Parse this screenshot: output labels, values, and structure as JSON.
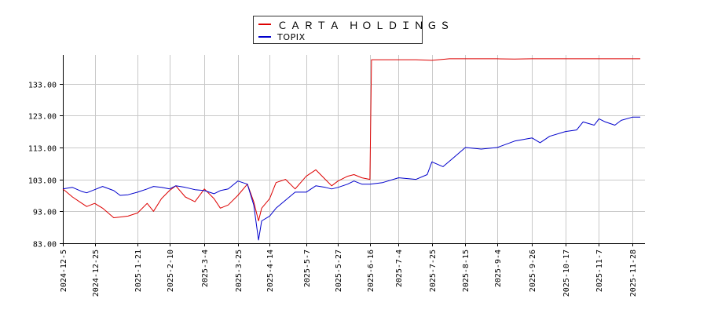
{
  "chart_data": {
    "type": "line",
    "title": "",
    "xlabel": "",
    "ylabel": "",
    "ylim": [
      83,
      142
    ],
    "yticks": [
      "83.00",
      "93.00",
      "103.00",
      "113.00",
      "123.00",
      "133.00"
    ],
    "x_tick_labels": [
      "2024-12-5",
      "2024-12-25",
      "2025-1-21",
      "2025-2-10",
      "2025-3-4",
      "2025-3-25",
      "2025-4-14",
      "2025-5-7",
      "2025-5-27",
      "2025-6-16",
      "2025-7-4",
      "2025-7-25",
      "2025-8-15",
      "2025-9-4",
      "2025-9-26",
      "2025-10-17",
      "2025-11-7",
      "2025-11-28"
    ],
    "grid": true,
    "legend_position": "top-center",
    "series": [
      {
        "name": "ＣＡＲＴＡ ＨＯＬＤＩＮＧＳ",
        "color": "#dd0000",
        "x": [
          "2024-12-5",
          "2024-12-11",
          "2024-12-17",
          "2024-12-20",
          "2024-12-25",
          "2024-12-30",
          "2025-1-6",
          "2025-1-10",
          "2025-1-15",
          "2025-1-21",
          "2025-1-27",
          "2025-1-31",
          "2025-2-5",
          "2025-2-10",
          "2025-2-14",
          "2025-2-20",
          "2025-2-26",
          "2025-3-4",
          "2025-3-10",
          "2025-3-14",
          "2025-3-19",
          "2025-3-25",
          "2025-3-31",
          "2025-4-4",
          "2025-4-7",
          "2025-4-9",
          "2025-4-14",
          "2025-4-18",
          "2025-4-24",
          "2025-4-30",
          "2025-5-7",
          "2025-5-13",
          "2025-5-19",
          "2025-5-23",
          "2025-5-27",
          "2025-6-2",
          "2025-6-6",
          "2025-6-11",
          "2025-6-16",
          "2025-6-17",
          "2025-6-18",
          "2025-6-24",
          "2025-7-4",
          "2025-7-15",
          "2025-7-25",
          "2025-8-5",
          "2025-8-15",
          "2025-8-25",
          "2025-9-4",
          "2025-9-15",
          "2025-9-26",
          "2025-10-7",
          "2025-10-17",
          "2025-10-28",
          "2025-11-7",
          "2025-11-17",
          "2025-11-28",
          "2025-12-3"
        ],
        "values": [
          100.0,
          97.5,
          95.5,
          94.5,
          95.5,
          94.0,
          91.0,
          91.2,
          91.5,
          92.5,
          95.5,
          93.0,
          97.0,
          99.5,
          101.0,
          97.5,
          96.0,
          100.0,
          97.0,
          94.0,
          95.0,
          98.0,
          101.5,
          96.0,
          90.0,
          94.0,
          97.0,
          102.0,
          103.0,
          100.0,
          104.0,
          106.0,
          103.0,
          101.0,
          102.5,
          104.0,
          104.5,
          103.5,
          103.0,
          140.5,
          140.5,
          140.5,
          140.5,
          140.5,
          140.3,
          140.8,
          140.8,
          140.8,
          140.8,
          140.7,
          140.8,
          140.8,
          140.8,
          140.8,
          140.8,
          140.8,
          140.8,
          140.8
        ]
      },
      {
        "name": "TOPIX",
        "color": "#0000cc",
        "x": [
          "2024-12-5",
          "2024-12-11",
          "2024-12-17",
          "2024-12-20",
          "2024-12-25",
          "2024-12-30",
          "2025-1-6",
          "2025-1-10",
          "2025-1-15",
          "2025-1-21",
          "2025-1-27",
          "2025-1-31",
          "2025-2-5",
          "2025-2-10",
          "2025-2-14",
          "2025-2-20",
          "2025-2-26",
          "2025-3-4",
          "2025-3-10",
          "2025-3-14",
          "2025-3-19",
          "2025-3-25",
          "2025-3-31",
          "2025-4-4",
          "2025-4-7",
          "2025-4-9",
          "2025-4-14",
          "2025-4-18",
          "2025-4-24",
          "2025-4-30",
          "2025-5-7",
          "2025-5-13",
          "2025-5-19",
          "2025-5-23",
          "2025-5-27",
          "2025-6-2",
          "2025-6-6",
          "2025-6-11",
          "2025-6-16",
          "2025-6-24",
          "2025-7-4",
          "2025-7-15",
          "2025-7-22",
          "2025-7-25",
          "2025-8-1",
          "2025-8-8",
          "2025-8-15",
          "2025-8-25",
          "2025-9-4",
          "2025-9-15",
          "2025-9-26",
          "2025-10-1",
          "2025-10-7",
          "2025-10-17",
          "2025-10-24",
          "2025-10-28",
          "2025-11-4",
          "2025-11-7",
          "2025-11-11",
          "2025-11-17",
          "2025-11-21",
          "2025-11-28",
          "2025-12-3"
        ],
        "values": [
          100.0,
          100.5,
          99.2,
          98.8,
          99.8,
          100.8,
          99.5,
          98.0,
          98.2,
          99.0,
          100.0,
          100.8,
          100.5,
          100.0,
          101.0,
          100.5,
          99.8,
          99.5,
          98.5,
          99.5,
          100.0,
          102.5,
          101.5,
          95.0,
          84.0,
          90.0,
          91.5,
          94.0,
          96.5,
          99.0,
          99.0,
          101.0,
          100.5,
          100.0,
          100.5,
          101.5,
          102.5,
          101.5,
          101.5,
          102.0,
          103.5,
          103.0,
          104.5,
          108.5,
          107.0,
          110.0,
          113.0,
          112.5,
          113.0,
          115.0,
          116.0,
          114.5,
          116.5,
          118.0,
          118.5,
          121.0,
          120.0,
          122.0,
          121.0,
          120.0,
          121.5,
          122.5,
          122.5
        ]
      }
    ]
  }
}
